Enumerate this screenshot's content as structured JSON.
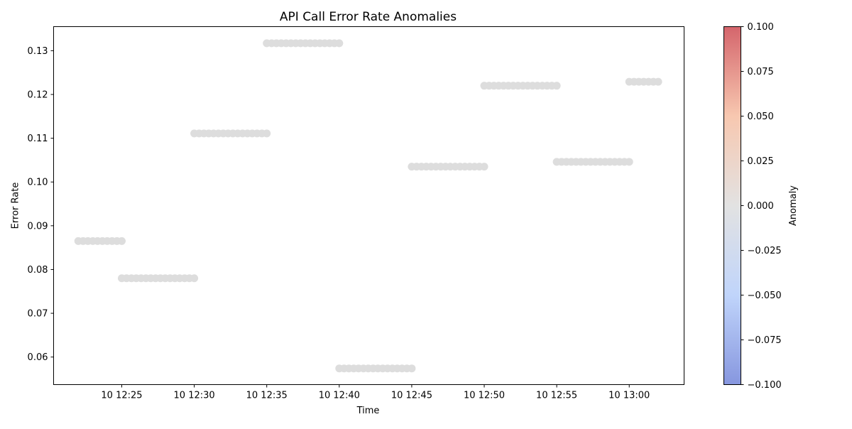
{
  "chart_data": {
    "type": "scatter",
    "title": "API Call Error Rate Anomalies",
    "xlabel": "Time",
    "ylabel": "Error Rate",
    "x_axis": {
      "scale": "time",
      "xlim": [
        "2024-01-10 12:20:18",
        "2024-01-10 13:03:47"
      ],
      "ticks": [
        {
          "value": "2024-01-10 12:25",
          "label": "10 12:25"
        },
        {
          "value": "2024-01-10 12:30",
          "label": "10 12:30"
        },
        {
          "value": "2024-01-10 12:35",
          "label": "10 12:35"
        },
        {
          "value": "2024-01-10 12:40",
          "label": "10 12:40"
        },
        {
          "value": "2024-01-10 12:45",
          "label": "10 12:45"
        },
        {
          "value": "2024-01-10 12:50",
          "label": "10 12:50"
        },
        {
          "value": "2024-01-10 12:55",
          "label": "10 12:55"
        },
        {
          "value": "2024-01-10 13:00",
          "label": "10 13:00"
        }
      ]
    },
    "y_axis": {
      "ylim": [
        0.0537,
        0.1355
      ],
      "ticks": [
        {
          "value": 0.06,
          "label": "0.06"
        },
        {
          "value": 0.07,
          "label": "0.07"
        },
        {
          "value": 0.08,
          "label": "0.08"
        },
        {
          "value": 0.09,
          "label": "0.09"
        },
        {
          "value": 0.1,
          "label": "0.10"
        },
        {
          "value": 0.11,
          "label": "0.11"
        },
        {
          "value": 0.12,
          "label": "0.12"
        },
        {
          "value": 0.13,
          "label": "0.13"
        }
      ]
    },
    "grid": false,
    "point_color": "#dddddd",
    "segments": [
      {
        "start": "2024-01-10 12:22",
        "end": "2024-01-10 12:25",
        "error_rate": 0.0865,
        "anomaly": 0
      },
      {
        "start": "2024-01-10 12:25",
        "end": "2024-01-10 12:30",
        "error_rate": 0.078,
        "anomaly": 0
      },
      {
        "start": "2024-01-10 12:30",
        "end": "2024-01-10 12:35",
        "error_rate": 0.1111,
        "anomaly": 0
      },
      {
        "start": "2024-01-10 12:35",
        "end": "2024-01-10 12:40",
        "error_rate": 0.1317,
        "anomaly": 0
      },
      {
        "start": "2024-01-10 12:40",
        "end": "2024-01-10 12:45",
        "error_rate": 0.0574,
        "anomaly": 0
      },
      {
        "start": "2024-01-10 12:45",
        "end": "2024-01-10 12:50",
        "error_rate": 0.1035,
        "anomaly": 0
      },
      {
        "start": "2024-01-10 12:50",
        "end": "2024-01-10 12:55",
        "error_rate": 0.122,
        "anomaly": 0
      },
      {
        "start": "2024-01-10 12:55",
        "end": "2024-01-10 13:00",
        "error_rate": 0.1046,
        "anomaly": 0
      },
      {
        "start": "2024-01-10 13:00",
        "end": "2024-01-10 13:02",
        "error_rate": 0.1229,
        "anomaly": 0
      }
    ],
    "colorbar": {
      "label": "Anomaly",
      "colormap": "coolwarm",
      "colors": [
        "#7184d9",
        "#b5cdfa",
        "#dddddd",
        "#f6bea2",
        "#cd4a52"
      ],
      "range": [
        -0.1,
        0.1
      ],
      "ticks": [
        {
          "value": 0.1,
          "label": "0.100"
        },
        {
          "value": 0.075,
          "label": "0.075"
        },
        {
          "value": 0.05,
          "label": "0.050"
        },
        {
          "value": 0.025,
          "label": "0.025"
        },
        {
          "value": 0.0,
          "label": "0.000"
        },
        {
          "value": -0.025,
          "label": "−0.025"
        },
        {
          "value": -0.05,
          "label": "−0.050"
        },
        {
          "value": -0.075,
          "label": "−0.075"
        },
        {
          "value": -0.1,
          "label": "−0.100"
        }
      ]
    }
  }
}
